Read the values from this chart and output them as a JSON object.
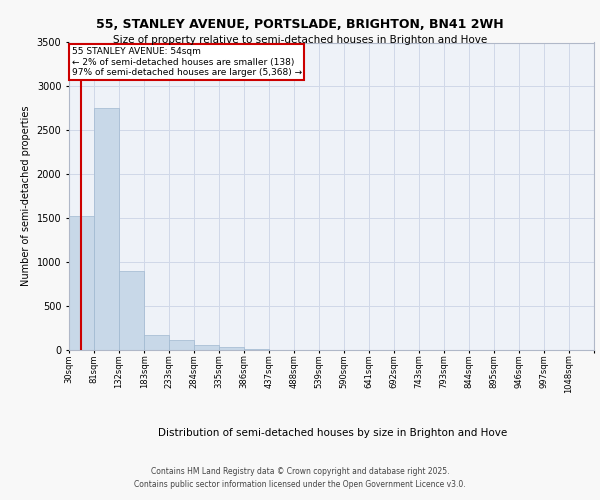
{
  "title1": "55, STANLEY AVENUE, PORTSLADE, BRIGHTON, BN41 2WH",
  "title2": "Size of property relative to semi-detached houses in Brighton and Hove",
  "xlabel": "Distribution of semi-detached houses by size in Brighton and Hove",
  "ylabel": "Number of semi-detached properties",
  "bin_labels": [
    "30sqm",
    "81sqm",
    "132sqm",
    "183sqm",
    "233sqm",
    "284sqm",
    "335sqm",
    "386sqm",
    "437sqm",
    "488sqm",
    "539sqm",
    "590sqm",
    "641sqm",
    "692sqm",
    "743sqm",
    "793sqm",
    "844sqm",
    "895sqm",
    "946sqm",
    "997sqm",
    "1048sqm"
  ],
  "bin_edges": [
    30,
    81,
    132,
    183,
    233,
    284,
    335,
    386,
    437,
    488,
    539,
    590,
    641,
    692,
    743,
    793,
    844,
    895,
    946,
    997,
    1048
  ],
  "bar_heights": [
    1530,
    2760,
    900,
    175,
    115,
    60,
    30,
    15,
    5,
    3,
    2,
    1,
    1,
    0,
    0,
    0,
    0,
    0,
    0,
    0
  ],
  "bar_color": "#c8d8e8",
  "bar_edge_color": "#a0b8d0",
  "property_size": 54,
  "annotation_title": "55 STANLEY AVENUE: 54sqm",
  "annotation_line1": "← 2% of semi-detached houses are smaller (138)",
  "annotation_line2": "97% of semi-detached houses are larger (5,368) →",
  "red_line_color": "#cc0000",
  "annotation_box_color": "#ffffff",
  "annotation_border_color": "#cc0000",
  "grid_color": "#d0d8e8",
  "background_color": "#eef2f8",
  "fig_background": "#f8f8f8",
  "footer1": "Contains HM Land Registry data © Crown copyright and database right 2025.",
  "footer2": "Contains public sector information licensed under the Open Government Licence v3.0.",
  "ylim": [
    0,
    3500
  ]
}
